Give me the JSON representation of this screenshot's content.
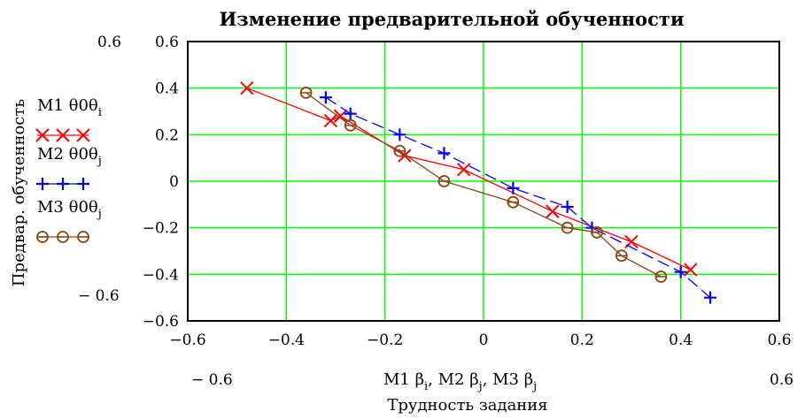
{
  "chart_data": {
    "type": "line",
    "title": "Изменение предварительной обученности",
    "xlabel": "Трудность задания",
    "xlabel_expr": [
      "M1 β",
      "i",
      ", M2 β",
      "j",
      ", M3 β",
      "j"
    ],
    "ylabel": "Предвар. обученность",
    "xlim": [
      -0.6,
      0.6
    ],
    "ylim": [
      -0.6,
      0.6
    ],
    "x_ticks": [
      "−0.6",
      "−0.4",
      "−0.2",
      "0",
      "0.2",
      "0.4",
      "0.6"
    ],
    "y_ticks": [
      "0.6",
      "0.4",
      "0.2",
      "0",
      "−0.2",
      "−0.4",
      "−0.6"
    ],
    "x_range_labels": [
      "− 0.6",
      "0.6"
    ],
    "y_range_labels": [
      "0.6",
      "− 0.6"
    ],
    "grid": true,
    "legend_position": "left",
    "series": [
      {
        "name": "M1",
        "legend_parts": [
          "M1  θ0θ",
          "i"
        ],
        "marker": "x",
        "color": "#ff0000",
        "x": [
          -0.48,
          -0.31,
          -0.29,
          -0.16,
          -0.04,
          0.14,
          0.3,
          0.42
        ],
        "y": [
          0.4,
          0.26,
          0.28,
          0.11,
          0.05,
          -0.13,
          -0.26,
          -0.38
        ]
      },
      {
        "name": "M2",
        "legend_parts": [
          "M2  θ0θ",
          "j"
        ],
        "marker": "+",
        "color": "#0000ff",
        "x": [
          -0.32,
          -0.27,
          -0.17,
          -0.08,
          0.06,
          0.17,
          0.22,
          0.4,
          0.46
        ],
        "y": [
          0.36,
          0.29,
          0.2,
          0.12,
          -0.03,
          -0.11,
          -0.2,
          -0.39,
          -0.5
        ]
      },
      {
        "name": "M3",
        "legend_parts": [
          "M3  θ0θ",
          "j"
        ],
        "marker": "o",
        "color": "#8b4513",
        "x": [
          -0.36,
          -0.27,
          -0.17,
          -0.08,
          0.06,
          0.17,
          0.23,
          0.28,
          0.36
        ],
        "y": [
          0.38,
          0.24,
          0.13,
          0.0,
          -0.09,
          -0.2,
          -0.22,
          -0.32,
          -0.41
        ]
      }
    ]
  }
}
